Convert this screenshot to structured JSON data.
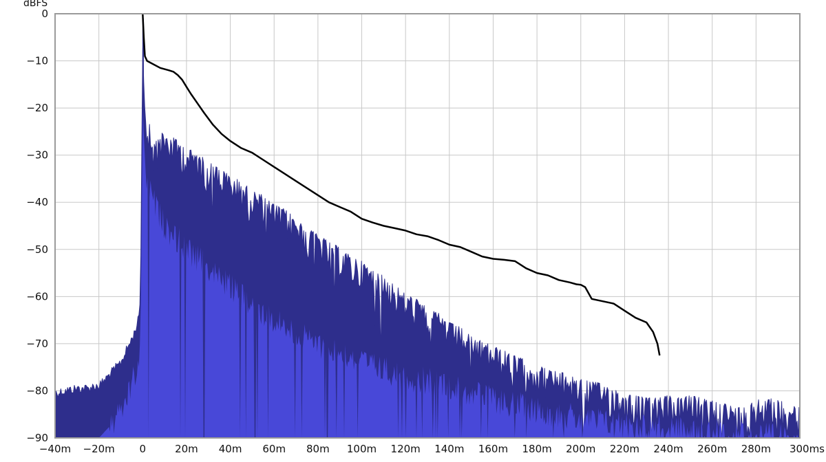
{
  "chart_data": {
    "type": "line",
    "title": "",
    "xlabel": "",
    "ylabel": "dBFS",
    "x_unit_label": "ms",
    "xlim": [
      -40,
      300
    ],
    "ylim": [
      -90,
      0
    ],
    "grid": true,
    "x_ticks": [
      -40,
      -20,
      0,
      20,
      40,
      60,
      80,
      100,
      120,
      140,
      160,
      180,
      200,
      220,
      240,
      260,
      280,
      300
    ],
    "x_tick_labels": [
      "-40m",
      "-20m",
      "0",
      "20m",
      "40m",
      "60m",
      "80m",
      "100m",
      "120m",
      "140m",
      "160m",
      "180m",
      "200m",
      "220m",
      "240m",
      "260m",
      "280m",
      "300ms"
    ],
    "y_ticks": [
      0,
      -10,
      -20,
      -30,
      -40,
      -50,
      -60,
      -70,
      -80,
      -90
    ],
    "y_tick_labels": [
      "0",
      "-10",
      "-20",
      "-30",
      "-40",
      "-50",
      "-60",
      "-70",
      "-80",
      "-90"
    ],
    "colors": {
      "envelope": "#2e2e8c",
      "fill": "#4848d8",
      "decay": "#000000",
      "grid": "#c8c8c8",
      "frame": "#9a9a9a"
    },
    "series": [
      {
        "kind": "decay_curve",
        "x": [
          0,
          0.5,
          1,
          2,
          4,
          8,
          12,
          14,
          16,
          18,
          20,
          22,
          25,
          28,
          32,
          36,
          40,
          45,
          50,
          55,
          60,
          65,
          70,
          75,
          80,
          85,
          90,
          95,
          100,
          105,
          110,
          115,
          120,
          125,
          130,
          135,
          140,
          145,
          150,
          155,
          160,
          165,
          170,
          175,
          180,
          185,
          190,
          195,
          198,
          200,
          202,
          205,
          210,
          215,
          220,
          225,
          230,
          233,
          235,
          236
        ],
        "y": [
          0,
          -5,
          -9,
          -10,
          -10.5,
          -11.5,
          -12,
          -12.3,
          -13,
          -14,
          -15.5,
          -17,
          -19,
          -21,
          -23.5,
          -25.5,
          -27,
          -28.5,
          -29.5,
          -31,
          -32.5,
          -34,
          -35.5,
          -37,
          -38.5,
          -40,
          -41,
          -42,
          -43.5,
          -44.3,
          -45,
          -45.5,
          -46,
          -46.8,
          -47.2,
          -48,
          -49,
          -49.5,
          -50.5,
          -51.5,
          -52,
          -52.2,
          -52.5,
          -54,
          -55,
          -55.5,
          -56.5,
          -57,
          -57.4,
          -57.5,
          -58,
          -60.5,
          -61,
          -61.5,
          -63,
          -64.5,
          -65.5,
          -67.5,
          -70,
          -72.5
        ]
      },
      {
        "kind": "envelope_peak",
        "x": [
          -40,
          -35,
          -30,
          -25,
          -22,
          -20,
          -18,
          -15,
          -12,
          -10,
          -8,
          -6,
          -4,
          -2,
          -1,
          0,
          0.5,
          1,
          2,
          4,
          6,
          8,
          10,
          15,
          20,
          25,
          30,
          35,
          40,
          45,
          50,
          55,
          60,
          65,
          70,
          75,
          80,
          85,
          90,
          95,
          100,
          105,
          110,
          115,
          120,
          125,
          130,
          135,
          140,
          145,
          150,
          155,
          160,
          165,
          170,
          175,
          180,
          185,
          190,
          195,
          200,
          205,
          210,
          215,
          220,
          225,
          230,
          235,
          240,
          245,
          250,
          255,
          260,
          265,
          270,
          275,
          280,
          285,
          290,
          295,
          300
        ],
        "y": [
          -80.5,
          -80,
          -79.5,
          -79.5,
          -79,
          -79,
          -78,
          -76.5,
          -75,
          -74,
          -72,
          -70,
          -68,
          -65,
          -60,
          -5,
          -12,
          -21,
          -24,
          -25,
          -26,
          -26.5,
          -27,
          -28,
          -30,
          -31,
          -33,
          -34,
          -36,
          -37,
          -39,
          -40,
          -42,
          -43,
          -45,
          -47,
          -48,
          -50,
          -51,
          -53,
          -54,
          -56,
          -57,
          -59,
          -61,
          -62,
          -64,
          -65,
          -67,
          -68,
          -70,
          -71,
          -72,
          -73,
          -74,
          -75,
          -76,
          -77,
          -77.5,
          -78,
          -79,
          -79.5,
          -80,
          -81,
          -82,
          -82.5,
          -83,
          -83,
          -82.5,
          -83,
          -82.5,
          -83,
          -83.5,
          -84,
          -85,
          -85,
          -83.5,
          -83,
          -83.5,
          -84,
          -84.5
        ]
      },
      {
        "kind": "fill_level",
        "x": [
          -40,
          -20,
          -10,
          -6,
          -3,
          -1,
          0,
          0.5,
          2,
          5,
          10,
          20,
          30,
          40,
          50,
          60,
          70,
          80,
          90,
          100,
          110,
          120,
          130,
          140,
          150,
          160,
          170,
          180,
          190,
          200,
          210,
          220,
          230,
          240,
          250,
          260,
          270,
          280,
          290,
          300
        ],
        "y": [
          -90,
          -90,
          -85,
          -80,
          -76,
          -72,
          -20,
          -28,
          -36,
          -40,
          -45,
          -50,
          -54,
          -58,
          -62,
          -65,
          -68,
          -70,
          -72,
          -74,
          -75.5,
          -77,
          -78,
          -79,
          -80.5,
          -82,
          -83,
          -84,
          -85,
          -86,
          -86.5,
          -87,
          -87.5,
          -88,
          -88.5,
          -89,
          -89,
          -89.5,
          -90,
          -90
        ]
      }
    ]
  }
}
